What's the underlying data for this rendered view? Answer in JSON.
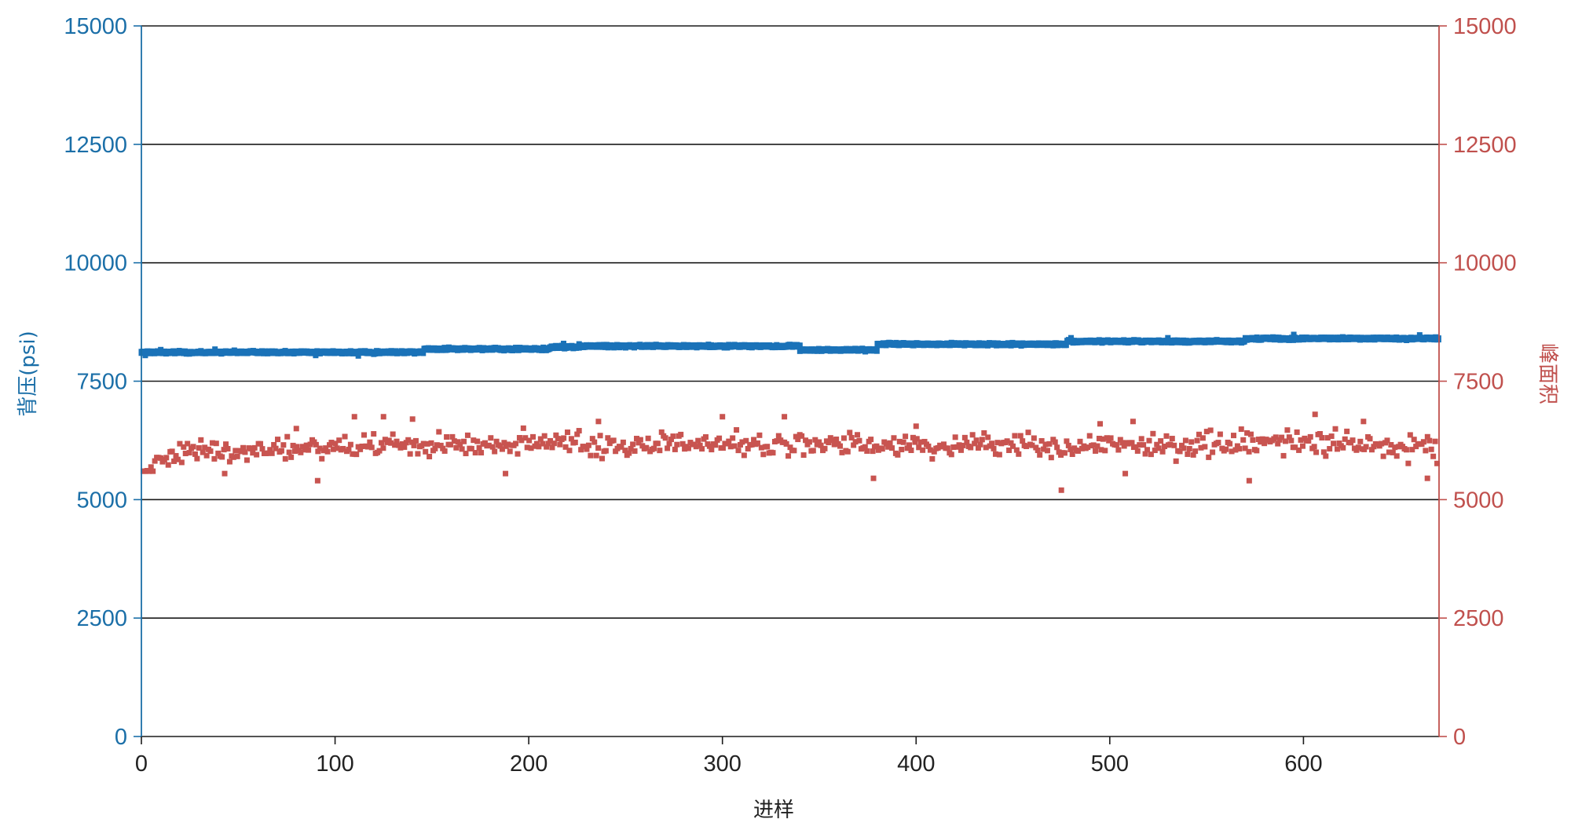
{
  "chart_data": {
    "type": "scatter",
    "title": "",
    "xlabel": "进样",
    "ylabel_left": "背压(psi)",
    "ylabel_right": "峰面积",
    "xlim": [
      0,
      670
    ],
    "ylim_left": [
      0,
      15000
    ],
    "ylim_right": [
      0,
      15000
    ],
    "xticks": [
      0,
      100,
      200,
      300,
      400,
      500,
      600
    ],
    "yticks_left": [
      0,
      2500,
      5000,
      7500,
      10000,
      12500,
      15000
    ],
    "yticks_right": [
      0,
      2500,
      5000,
      7500,
      10000,
      12500,
      15000
    ],
    "grid": "horizontal",
    "colors": {
      "left_axis": "#1b6fa8",
      "right_axis": "#c0504d",
      "back_pressure": "#1a72b8",
      "peak_area": "#c85450"
    },
    "series": [
      {
        "axis": "left",
        "segments": [
          {
            "x_start": 0,
            "x_end": 146,
            "y": 8110
          },
          {
            "x_start": 146,
            "x_end": 211,
            "y": 8180
          },
          {
            "x_start": 211,
            "x_end": 226,
            "y": 8220
          },
          {
            "x_start": 226,
            "x_end": 340,
            "y": 8240
          },
          {
            "x_start": 340,
            "x_end": 380,
            "y": 8160
          },
          {
            "x_start": 380,
            "x_end": 478,
            "y": 8280
          },
          {
            "x_start": 478,
            "x_end": 570,
            "y": 8340
          },
          {
            "x_start": 570,
            "x_end": 670,
            "y": 8400
          }
        ],
        "outliers": [
          {
            "x": 2,
            "y": 8060
          },
          {
            "x": 10,
            "y": 8150
          },
          {
            "x": 38,
            "y": 8160
          },
          {
            "x": 90,
            "y": 8060
          },
          {
            "x": 112,
            "y": 8050
          },
          {
            "x": 218,
            "y": 8280
          },
          {
            "x": 226,
            "y": 8270
          },
          {
            "x": 386,
            "y": 8300
          },
          {
            "x": 480,
            "y": 8400
          },
          {
            "x": 530,
            "y": 8400
          },
          {
            "x": 595,
            "y": 8470
          },
          {
            "x": 660,
            "y": 8460
          }
        ]
      },
      {
        "axis": "right",
        "trend": [
          [
            0,
            5350
          ],
          [
            6,
            5650
          ],
          [
            12,
            5900
          ],
          [
            25,
            6000
          ],
          [
            100,
            6120
          ],
          [
            150,
            6150
          ],
          [
            300,
            6180
          ],
          [
            450,
            6150
          ],
          [
            600,
            6200
          ],
          [
            670,
            6100
          ]
        ],
        "noise_sd": 230,
        "count": 675,
        "outliers": [
          {
            "x": 91,
            "y": 5400
          },
          {
            "x": 188,
            "y": 5550
          },
          {
            "x": 378,
            "y": 5450
          },
          {
            "x": 475,
            "y": 5200
          },
          {
            "x": 572,
            "y": 5400
          },
          {
            "x": 664,
            "y": 5450
          },
          {
            "x": 508,
            "y": 5550
          },
          {
            "x": 43,
            "y": 5550
          },
          {
            "x": 110,
            "y": 6750
          },
          {
            "x": 125,
            "y": 6750
          },
          {
            "x": 236,
            "y": 6650
          },
          {
            "x": 300,
            "y": 6750
          },
          {
            "x": 332,
            "y": 6750
          },
          {
            "x": 606,
            "y": 6800
          },
          {
            "x": 512,
            "y": 6650
          },
          {
            "x": 495,
            "y": 6600
          },
          {
            "x": 631,
            "y": 6650
          },
          {
            "x": 400,
            "y": 6550
          },
          {
            "x": 140,
            "y": 6700
          },
          {
            "x": 80,
            "y": 6500
          }
        ]
      }
    ]
  }
}
